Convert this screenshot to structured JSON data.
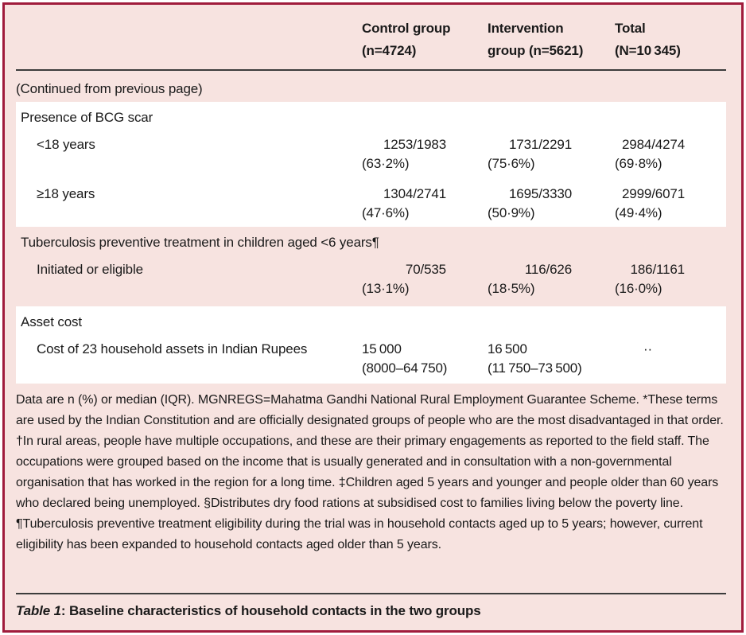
{
  "colors": {
    "accent_border": "#A01B3C",
    "page_background": "#F7E3E0",
    "band_background": "#FFFFFF",
    "text": "#1A1A1A",
    "rule": "#3C3C3C"
  },
  "header": {
    "control": {
      "line1": "Control group",
      "line2": "(n=4724)"
    },
    "intervention": {
      "line1": "Intervention",
      "line2": "group (n=5621)"
    },
    "total": {
      "line1": "Total",
      "line2": "(N=10 345)"
    }
  },
  "continued_note": "(Continued from previous page)",
  "sections": [
    {
      "title": "Presence of BCG scar",
      "rows": [
        {
          "label": "<18 years",
          "control": {
            "frac": "1253/1983",
            "pct": "(63·2%)"
          },
          "intervention": {
            "frac": "1731/2291",
            "pct": "(75·6%)"
          },
          "total": {
            "frac": "2984/4274",
            "pct": "(69·8%)"
          }
        },
        {
          "label": "≥18 years",
          "control": {
            "frac": "1304/2741",
            "pct": "(47·6%)"
          },
          "intervention": {
            "frac": "1695/3330",
            "pct": "(50·9%)"
          },
          "total": {
            "frac": "2999/6071",
            "pct": "(49·4%)"
          }
        }
      ]
    },
    {
      "title": "Tuberculosis preventive treatment in children aged <6 years¶",
      "rows": [
        {
          "label": "Initiated or eligible",
          "control": {
            "frac": "70/535",
            "pct": "(13·1%)"
          },
          "intervention": {
            "frac": "116/626",
            "pct": "(18·5%)"
          },
          "total": {
            "frac": "186/1161",
            "pct": "(16·0%)"
          }
        }
      ]
    },
    {
      "title": "Asset cost",
      "rows": [
        {
          "label": "Cost of 23 household assets in Indian Rupees",
          "control": {
            "frac": "15 000",
            "pct": "(8000–64 750)"
          },
          "intervention": {
            "frac": "16 500",
            "pct": "(11 750–73 500)"
          },
          "total": {
            "missing": "··"
          }
        }
      ]
    }
  ],
  "footnotes": "Data are n (%) or median (IQR). MGNREGS=Mahatma Gandhi National Rural Employment Guarantee Scheme. *These terms are used by the Indian Constitution and are officially designated groups of people who are the most disadvantaged in that order. †In rural areas, people have multiple occupations, and these are their primary engagements as reported to the field staff. The occupations were grouped based on the income that is usually generated and in consultation with a non-governmental organisation that has worked in the region for a long time. ‡Children aged 5 years and younger and people older than 60 years who declared being unemployed. §Distributes dry food rations at subsidised cost to families living below the poverty line. ¶Tuberculosis preventive treatment eligibility during the trial was in household contacts aged up to 5 years; however, current eligibility has been expanded to household contacts aged older than 5 years.",
  "caption": {
    "prefix": "Table 1",
    "rest": ": Baseline characteristics of household contacts in the two groups"
  }
}
